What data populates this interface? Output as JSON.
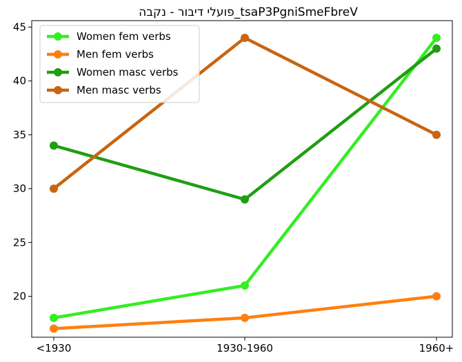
{
  "chart_data": {
    "type": "line",
    "title": "פועלי דיבור - נקבה_tsaP3PgniSmeFbreV",
    "xlabel": "",
    "ylabel": "",
    "categories": [
      "<1930",
      "1930-1960",
      "1960+"
    ],
    "ylim": [
      16.2,
      45.6
    ],
    "yticks": [
      20,
      25,
      30,
      35,
      40,
      45
    ],
    "grid": false,
    "legend_position": "upper-left",
    "series": [
      {
        "name": "Women fem verbs",
        "color": "#33ee22",
        "values": [
          18,
          21,
          44
        ]
      },
      {
        "name": "Men fem verbs",
        "color": "#ff7f0e",
        "values": [
          17,
          18,
          20
        ]
      },
      {
        "name": "Women masc verbs",
        "color": "#1f9e12",
        "values": [
          34,
          29,
          43
        ]
      },
      {
        "name": "Men masc verbs",
        "color": "#c96410",
        "values": [
          30,
          44,
          35
        ]
      }
    ]
  }
}
